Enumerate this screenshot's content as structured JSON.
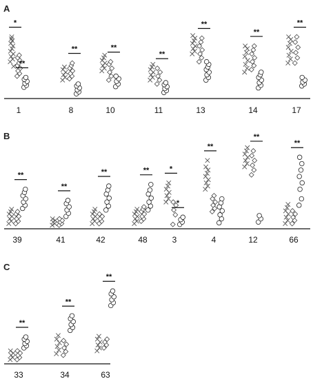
{
  "chart_data": [
    {
      "type": "scatter",
      "panel": "A",
      "series_markers": [
        "x",
        "diamond",
        "circle"
      ],
      "ylim": [
        0,
        10
      ],
      "categories": [
        "1",
        "8",
        "10",
        "11",
        "13",
        "14",
        "17"
      ],
      "groups": [
        {
          "label": "1",
          "values": {
            "x": [
              5.2,
              5.6,
              6.0,
              6.4,
              6.8,
              7.2,
              7.6,
              8.0,
              8.4,
              8.7,
              9.0,
              4.5
            ],
            "diamond": [
              3.0,
              3.4,
              3.8,
              4.2,
              4.6,
              5.0,
              5.4,
              5.8,
              6.2
            ],
            "circle": [
              1.3,
              1.6,
              1.9,
              2.2,
              2.5,
              2.8
            ]
          },
          "sig": [
            {
              "pair": [
                "x",
                "diamond"
              ],
              "label": "*"
            },
            {
              "pair": [
                "diamond",
                "circle"
              ],
              "label": "**"
            }
          ]
        },
        {
          "label": "8",
          "values": {
            "x": [
              2.4,
              2.8,
              3.2,
              3.6,
              4.0,
              4.4
            ],
            "diamond": [
              2.6,
              3.0,
              3.4,
              3.8,
              4.2,
              4.6,
              5.0
            ],
            "circle": [
              0.3,
              0.6,
              0.9,
              1.2,
              1.5,
              1.8
            ]
          },
          "sig": [
            {
              "pair": [
                "diamond",
                "circle"
              ],
              "label": "**"
            }
          ]
        },
        {
          "label": "10",
          "values": {
            "x": [
              3.8,
              4.2,
              4.6,
              5.0,
              5.4,
              5.8,
              6.2
            ],
            "diamond": [
              2.4,
              3.0,
              3.6,
              4.2,
              4.8,
              5.2
            ],
            "circle": [
              1.4,
              1.8,
              2.2,
              2.6,
              3.0
            ]
          },
          "sig": [
            {
              "pair": [
                "diamond",
                "circle"
              ],
              "label": "**"
            }
          ]
        },
        {
          "label": "11",
          "values": {
            "x": [
              2.4,
              2.8,
              3.2,
              3.6,
              4.0,
              4.4,
              4.8
            ],
            "diamond": [
              1.8,
              2.4,
              3.0,
              3.6,
              4.2
            ],
            "circle": [
              0.5,
              0.8,
              1.1,
              1.4,
              1.7,
              2.0
            ]
          },
          "sig": [
            {
              "pair": [
                "diamond",
                "circle"
              ],
              "label": "**"
            }
          ]
        },
        {
          "label": "13",
          "values": {
            "x": [
              6.4,
              6.8,
              7.2,
              7.6,
              8.0,
              8.4,
              8.8,
              9.2
            ],
            "diamond": [
              5.2,
              5.8,
              6.4,
              7.0,
              7.6,
              8.2,
              8.8
            ],
            "circle": [
              2.4,
              2.8,
              3.2,
              3.6,
              4.0,
              4.4,
              4.8,
              5.2
            ]
          },
          "sig": [
            {
              "pair": [
                "diamond",
                "circle"
              ],
              "label": "**"
            }
          ]
        },
        {
          "label": "14",
          "values": {
            "x": [
              3.6,
              4.2,
              4.8,
              5.4,
              6.0,
              6.6,
              7.2,
              7.6
            ],
            "diamond": [
              4.0,
              4.6,
              5.2,
              5.8,
              6.4,
              7.0,
              7.6
            ],
            "circle": [
              1.2,
              1.6,
              2.0,
              2.4,
              2.8,
              3.2,
              3.6
            ]
          },
          "sig": [
            {
              "pair": [
                "diamond",
                "circle"
              ],
              "label": "**"
            }
          ]
        },
        {
          "label": "17",
          "values": {
            "x": [
              5.0,
              5.6,
              6.2,
              6.8,
              7.4,
              8.0,
              8.6,
              9.0
            ],
            "diamond": [
              5.0,
              5.8,
              6.6,
              7.4,
              8.2,
              9.0
            ],
            "circle": [
              1.5,
              1.8,
              2.1,
              2.4,
              2.8
            ]
          },
          "sig": [
            {
              "pair": [
                "diamond",
                "circle"
              ],
              "label": "**"
            }
          ]
        }
      ]
    },
    {
      "type": "scatter",
      "panel": "B",
      "series_markers": [
        "x",
        "diamond",
        "circle"
      ],
      "ylim": [
        0,
        10
      ],
      "categories": [
        "39",
        "41",
        "42",
        "48",
        "3",
        "4",
        "12",
        "66"
      ],
      "groups": [
        {
          "label": "39",
          "values": {
            "x": [
              0.3,
              0.6,
              0.9,
              1.2,
              1.5,
              1.8,
              2.1
            ],
            "diamond": [
              0.3,
              0.6,
              0.9,
              1.2,
              1.5,
              1.8
            ],
            "circle": [
              2.2,
              2.6,
              3.0,
              3.4,
              3.8,
              4.2,
              4.6
            ]
          },
          "sig": [
            {
              "pair": [
                "diamond",
                "circle"
              ],
              "label": "**"
            }
          ]
        },
        {
          "label": "41",
          "values": {
            "x": [
              0.1,
              0.3,
              0.5,
              0.7,
              0.9
            ],
            "diamond": [
              0.1,
              0.3,
              0.5,
              0.7,
              0.9
            ],
            "circle": [
              1.2,
              1.6,
              2.0,
              2.4,
              2.8,
              3.2
            ]
          },
          "sig": [
            {
              "pair": [
                "diamond",
                "circle"
              ],
              "label": "**"
            }
          ]
        },
        {
          "label": "42",
          "values": {
            "x": [
              0.3,
              0.6,
              0.9,
              1.2,
              1.5,
              1.8,
              2.1
            ],
            "diamond": [
              0.3,
              0.6,
              0.9,
              1.2,
              1.5
            ],
            "circle": [
              2.0,
              2.5,
              3.0,
              3.5,
              4.0,
              4.5,
              5.0
            ]
          },
          "sig": [
            {
              "pair": [
                "diamond",
                "circle"
              ],
              "label": "**"
            }
          ]
        },
        {
          "label": "48",
          "values": {
            "x": [
              0.3,
              0.6,
              0.9,
              1.2,
              1.5,
              1.8,
              2.1
            ],
            "diamond": [
              0.6,
              0.9,
              1.2,
              1.5,
              1.8,
              2.1,
              2.4
            ],
            "circle": [
              2.0,
              2.5,
              3.0,
              3.5,
              4.0,
              4.5,
              5.2
            ]
          },
          "sig": [
            {
              "pair": [
                "diamond",
                "circle"
              ],
              "label": "**"
            }
          ]
        },
        {
          "label": "3",
          "values": {
            "x": [
              3.0,
              3.4,
              3.8,
              4.2,
              4.6,
              5.0,
              5.4
            ],
            "diamond": [
              0.2,
              1.4,
              2.0,
              2.6,
              3.0
            ],
            "circle": [
              0.2,
              0.5,
              0.8,
              1.1
            ]
          },
          "sig": [
            {
              "pair": [
                "x",
                "diamond"
              ],
              "label": "*"
            },
            {
              "pair": [
                "diamond",
                "circle"
              ],
              "label": "*"
            }
          ]
        },
        {
          "label": "4",
          "values": {
            "x": [
              4.6,
              5.0,
              5.4,
              5.8,
              6.2,
              6.6,
              7.0,
              7.4,
              8.2
            ],
            "diamond": [
              1.8,
              2.2,
              2.6,
              3.0,
              3.4,
              3.8
            ],
            "circle": [
              0.4,
              0.9,
              1.4,
              1.9,
              2.4,
              2.9,
              3.4
            ]
          },
          "sig": [
            {
              "pair": [
                "x",
                "diamond"
              ],
              "label": "**"
            }
          ]
        },
        {
          "label": "12",
          "values": {
            "x": [
              7.4,
              7.8,
              8.2,
              8.6,
              9.0,
              9.4,
              9.8
            ],
            "diamond": [
              6.4,
              7.0,
              7.6,
              8.2,
              8.8,
              9.4
            ],
            "circle": [
              0.5,
              0.9,
              1.3
            ]
          },
          "sig": [
            {
              "pair": [
                "diamond",
                "circle"
              ],
              "label": "**"
            }
          ]
        },
        {
          "label": "66",
          "values": {
            "x": [
              0.3,
              0.7,
              1.1,
              1.5,
              1.9,
              2.3,
              2.7
            ],
            "diamond": [
              0.3,
              0.7,
              1.1,
              1.5,
              1.9
            ],
            "circle": [
              2.6,
              3.4,
              4.6,
              5.4,
              6.2,
              7.0,
              7.8,
              8.6
            ]
          },
          "sig": [
            {
              "pair": [
                "diamond",
                "circle"
              ],
              "label": "**"
            }
          ]
        }
      ]
    },
    {
      "type": "scatter",
      "panel": "C",
      "series_markers": [
        "x",
        "diamond",
        "circle"
      ],
      "ylim": [
        0,
        10
      ],
      "categories": [
        "33",
        "34",
        "63"
      ],
      "groups": [
        {
          "label": "33",
          "values": {
            "x": [
              0.2,
              0.5,
              0.8,
              1.1,
              1.4
            ],
            "diamond": [
              0.2,
              0.5,
              0.8,
              1.1,
              1.4
            ],
            "circle": [
              1.8,
              2.1,
              2.4,
              2.7,
              3.0,
              3.3
            ]
          },
          "sig": [
            {
              "pair": [
                "diamond",
                "circle"
              ],
              "label": "**"
            }
          ]
        },
        {
          "label": "34",
          "values": {
            "x": [
              1.0,
              1.5,
              2.0,
              2.5,
              3.0,
              3.5
            ],
            "diamond": [
              0.8,
              1.3,
              1.8,
              2.3,
              2.8
            ],
            "circle": [
              4.2,
              4.6,
              5.0,
              5.4,
              5.8,
              6.2
            ]
          },
          "sig": [
            {
              "pair": [
                "diamond",
                "circle"
              ],
              "label": "**"
            }
          ]
        },
        {
          "label": "63",
          "values": {
            "x": [
              1.4,
              1.8,
              2.2,
              2.6,
              3.0,
              3.4
            ],
            "diamond": [
              1.8,
              2.2,
              2.6,
              3.0
            ],
            "circle": [
              7.6,
              8.0,
              8.4,
              8.8,
              9.2,
              9.6
            ]
          },
          "sig": [
            {
              "pair": [
                "diamond",
                "circle"
              ],
              "label": "**"
            }
          ]
        }
      ]
    }
  ],
  "panel_letters": [
    "A",
    "B",
    "C"
  ]
}
